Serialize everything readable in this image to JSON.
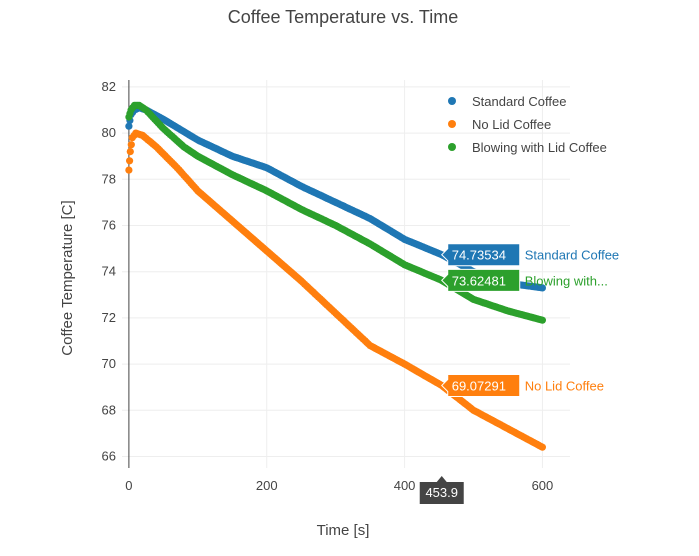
{
  "chart_data": {
    "type": "scatter",
    "title": "Coffee Temperature vs. Time",
    "xlabel": "Time [s]",
    "ylabel": "Coffee Temperature [C]",
    "xlim": [
      -10,
      640
    ],
    "ylim": [
      65.5,
      82.3
    ],
    "xticks": [
      0,
      200,
      400,
      600
    ],
    "yticks": [
      66,
      68,
      70,
      72,
      74,
      76,
      78,
      80,
      82
    ],
    "grid": true,
    "legend_position": "top-right",
    "series": [
      {
        "name": "Standard Coffee",
        "color": "#1f77b4",
        "points": [
          [
            0,
            80.3
          ],
          [
            3,
            80.8
          ],
          [
            8,
            81.0
          ],
          [
            15,
            81.1
          ],
          [
            25,
            81.0
          ],
          [
            50,
            80.6
          ],
          [
            100,
            79.7
          ],
          [
            150,
            79.0
          ],
          [
            200,
            78.5
          ],
          [
            250,
            77.7
          ],
          [
            300,
            77.0
          ],
          [
            350,
            76.3
          ],
          [
            400,
            75.4
          ],
          [
            453.9,
            74.73534
          ],
          [
            500,
            74.0
          ],
          [
            550,
            73.5
          ],
          [
            600,
            73.3
          ]
        ]
      },
      {
        "name": "No Lid Coffee",
        "color": "#ff7f0e",
        "points": [
          [
            0,
            78.4
          ],
          [
            2,
            79.2
          ],
          [
            5,
            79.8
          ],
          [
            10,
            80.0
          ],
          [
            20,
            79.9
          ],
          [
            40,
            79.4
          ],
          [
            70,
            78.5
          ],
          [
            100,
            77.5
          ],
          [
            150,
            76.2
          ],
          [
            200,
            74.9
          ],
          [
            250,
            73.6
          ],
          [
            300,
            72.2
          ],
          [
            350,
            70.8
          ],
          [
            400,
            70.0
          ],
          [
            453.9,
            69.07291
          ],
          [
            500,
            68.0
          ],
          [
            550,
            67.2
          ],
          [
            600,
            66.4
          ]
        ]
      },
      {
        "name": "Blowing with Lid Coffee",
        "color": "#2ca02c",
        "points": [
          [
            0,
            80.7
          ],
          [
            3,
            81.0
          ],
          [
            8,
            81.2
          ],
          [
            15,
            81.2
          ],
          [
            25,
            81.0
          ],
          [
            50,
            80.2
          ],
          [
            80,
            79.4
          ],
          [
            100,
            79.0
          ],
          [
            150,
            78.2
          ],
          [
            200,
            77.5
          ],
          [
            250,
            76.7
          ],
          [
            300,
            76.0
          ],
          [
            350,
            75.2
          ],
          [
            400,
            74.3
          ],
          [
            453.9,
            73.62481
          ],
          [
            500,
            72.8
          ],
          [
            550,
            72.3
          ],
          [
            600,
            71.9
          ]
        ]
      }
    ],
    "hover": {
      "x_label": "453.9",
      "items": [
        {
          "value": "74.73534",
          "name": "Standard Coffee",
          "y": 74.73534,
          "color": "#1f77b4"
        },
        {
          "value": "73.62481",
          "name": "Blowing with...",
          "y": 73.62481,
          "color": "#2ca02c"
        },
        {
          "value": "69.07291",
          "name": "No Lid Coffee",
          "y": 69.07291,
          "color": "#ff7f0e"
        }
      ]
    }
  }
}
